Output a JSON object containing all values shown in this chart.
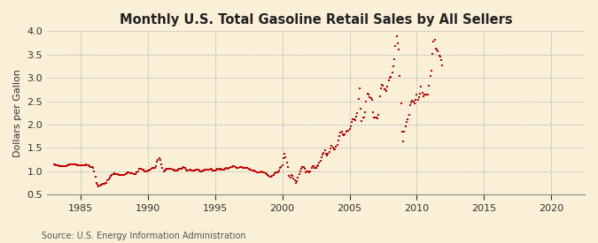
{
  "title": "Monthly U.S. Total Gasoline Retail Sales by All Sellers",
  "ylabel": "Dollars per Gallon",
  "source": "Source: U.S. Energy Information Administration",
  "background_color": "#faefd7",
  "line_color": "#cc0000",
  "xlim": [
    1982.5,
    2022.5
  ],
  "ylim": [
    0.5,
    4.0
  ],
  "xticks": [
    1985,
    1990,
    1995,
    2000,
    2005,
    2010,
    2015,
    2020
  ],
  "yticks": [
    0.5,
    1.0,
    1.5,
    2.0,
    2.5,
    3.0,
    3.5,
    4.0
  ],
  "monthly_values": [
    1.157,
    1.15,
    1.135,
    1.131,
    1.127,
    1.12,
    1.117,
    1.115,
    1.114,
    1.115,
    1.118,
    1.12,
    1.13,
    1.14,
    1.145,
    1.148,
    1.155,
    1.155,
    1.148,
    1.145,
    1.143,
    1.14,
    1.14,
    1.138,
    1.132,
    1.13,
    1.128,
    1.131,
    1.138,
    1.142,
    1.138,
    1.132,
    1.12,
    1.102,
    1.09,
    1.075,
    1.005,
    0.883,
    0.76,
    0.72,
    0.68,
    0.69,
    0.71,
    0.72,
    0.725,
    0.73,
    0.75,
    0.76,
    0.8,
    0.83,
    0.87,
    0.9,
    0.92,
    0.95,
    0.96,
    0.95,
    0.94,
    0.935,
    0.93,
    0.93,
    0.93,
    0.92,
    0.92,
    0.93,
    0.95,
    0.965,
    0.97,
    0.97,
    0.965,
    0.955,
    0.955,
    0.95,
    0.94,
    0.95,
    0.98,
    1.0,
    1.05,
    1.06,
    1.05,
    1.04,
    1.03,
    1.0,
    0.99,
    0.99,
    1.01,
    1.02,
    1.04,
    1.05,
    1.07,
    1.075,
    1.075,
    1.11,
    1.21,
    1.25,
    1.28,
    1.245,
    1.15,
    1.075,
    1.0,
    1.02,
    1.04,
    1.05,
    1.05,
    1.055,
    1.06,
    1.055,
    1.04,
    1.03,
    1.02,
    1.01,
    1.02,
    1.03,
    1.05,
    1.06,
    1.06,
    1.075,
    1.085,
    1.07,
    1.04,
    1.02,
    1.02,
    1.03,
    1.03,
    1.02,
    1.01,
    1.02,
    1.02,
    1.035,
    1.04,
    1.03,
    1.02,
    1.0,
    1.0,
    1.01,
    1.02,
    1.03,
    1.03,
    1.03,
    1.03,
    1.04,
    1.055,
    1.045,
    1.025,
    1.01,
    1.01,
    1.03,
    1.05,
    1.04,
    1.05,
    1.05,
    1.03,
    1.03,
    1.04,
    1.06,
    1.065,
    1.05,
    1.065,
    1.07,
    1.085,
    1.09,
    1.115,
    1.11,
    1.09,
    1.08,
    1.08,
    1.08,
    1.1,
    1.085,
    1.085,
    1.07,
    1.075,
    1.08,
    1.08,
    1.08,
    1.05,
    1.04,
    1.03,
    1.02,
    1.02,
    1.01,
    1.0,
    0.97,
    0.97,
    0.97,
    0.98,
    0.99,
    0.98,
    0.975,
    0.97,
    0.965,
    0.94,
    0.92,
    0.91,
    0.89,
    0.88,
    0.9,
    0.93,
    0.96,
    0.97,
    0.975,
    0.975,
    1.02,
    1.08,
    1.1,
    1.14,
    1.28,
    1.37,
    1.31,
    1.18,
    1.09,
    0.9,
    0.87,
    0.92,
    0.9,
    0.85,
    0.8,
    0.75,
    0.79,
    0.87,
    0.95,
    1.0,
    1.05,
    1.09,
    1.1,
    1.05,
    0.98,
    0.99,
    1.0,
    0.98,
    0.99,
    1.08,
    1.11,
    1.115,
    1.07,
    1.08,
    1.12,
    1.14,
    1.19,
    1.23,
    1.3,
    1.35,
    1.4,
    1.46,
    1.38,
    1.33,
    1.37,
    1.41,
    1.49,
    1.54,
    1.51,
    1.48,
    1.47,
    1.53,
    1.57,
    1.66,
    1.75,
    1.84,
    1.85,
    1.8,
    1.78,
    1.8,
    1.85,
    1.87,
    1.87,
    1.9,
    1.96,
    2.05,
    2.12,
    2.12,
    2.1,
    2.18,
    2.25,
    2.55,
    2.77,
    2.34,
    2.08,
    2.15,
    2.15,
    2.26,
    2.5,
    2.67,
    2.64,
    2.58,
    2.57,
    2.53,
    2.27,
    2.15,
    2.15,
    2.15,
    2.13,
    2.2,
    2.6,
    2.78,
    2.86,
    2.83,
    2.75,
    2.76,
    2.72,
    2.82,
    2.95,
    3.0,
    3.02,
    3.12,
    3.25,
    3.4,
    3.69,
    3.9,
    3.75,
    3.6,
    3.05,
    2.45,
    1.85,
    1.65,
    1.85,
    1.97,
    2.05,
    2.12,
    2.21,
    2.42,
    2.47,
    2.52,
    2.49,
    2.46,
    2.54,
    2.64,
    2.53,
    2.58,
    2.66,
    2.81,
    2.68,
    2.61,
    2.65,
    2.65,
    2.64,
    2.65,
    2.84,
    3.05,
    3.15,
    3.51,
    3.77,
    3.82,
    3.62,
    3.6,
    3.57,
    3.48,
    3.45,
    3.38,
    3.27
  ],
  "start_year": 1983
}
